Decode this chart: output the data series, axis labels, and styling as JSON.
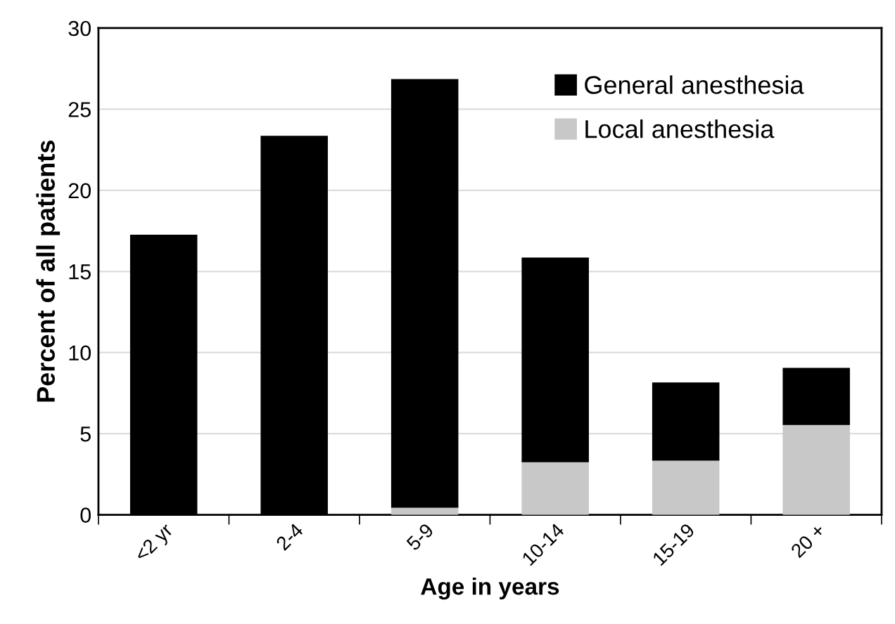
{
  "chart_data": {
    "type": "bar",
    "stacked": true,
    "xlabel": "Age in years",
    "ylabel": "Percent of all patients",
    "categories": [
      "<2 yr",
      "2-4",
      "5-9",
      "10-14",
      "15-19",
      "20 +"
    ],
    "series": [
      {
        "name": "Local anesthesia",
        "color": "#c8c8c8",
        "values": [
          null,
          null,
          0.5,
          3.3,
          3.4,
          5.6
        ]
      },
      {
        "name": "General anesthesia",
        "color": "#000000",
        "values": [
          17.2,
          23.3,
          26.3,
          12.5,
          4.7,
          3.4
        ]
      }
    ],
    "ylim": [
      0,
      30
    ],
    "yticks": [
      0,
      5,
      10,
      15,
      20,
      25,
      30
    ],
    "grid": "y",
    "legend": "top right"
  }
}
